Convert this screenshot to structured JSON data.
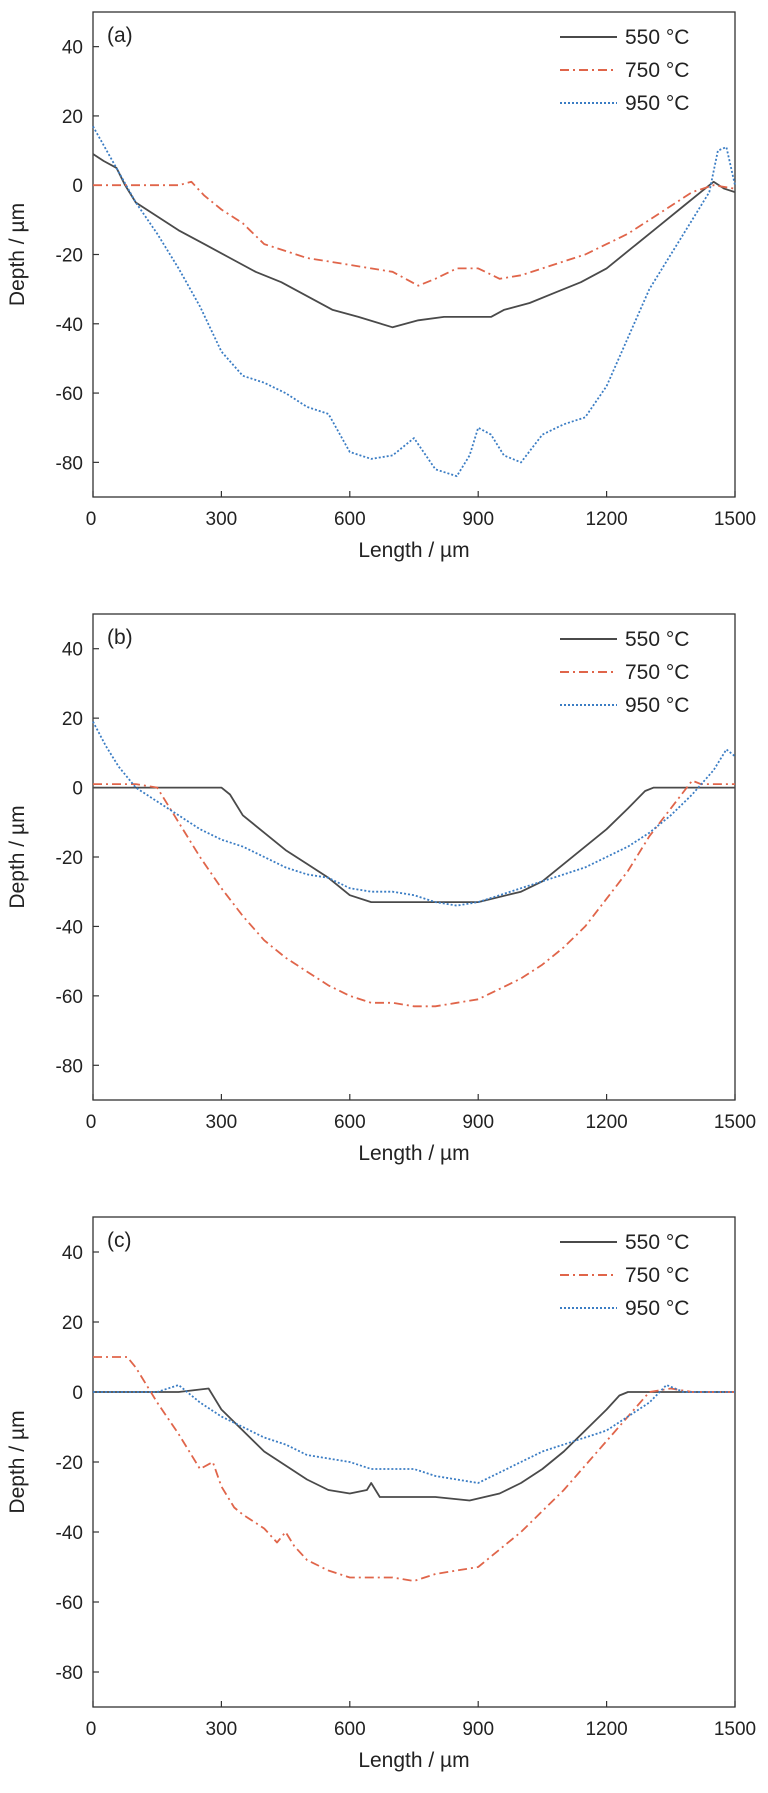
{
  "chart_data": [
    {
      "type": "line",
      "panel_label": "(a)",
      "xlabel": "Length / µm",
      "ylabel": "Depth / µm",
      "xlim": [
        0,
        1500
      ],
      "ylim": [
        -90,
        50
      ],
      "xticks": [
        "0",
        "300",
        "600",
        "900",
        "1200",
        "1500"
      ],
      "yticks": [
        "40",
        "20",
        "0",
        "-20",
        "-40",
        "-60",
        "-80"
      ],
      "legend_position": "top-right",
      "series": [
        {
          "name": "550 °C",
          "color": "#4a4a4a",
          "dash": "solid",
          "x": [
            0,
            25,
            55,
            75,
            100,
            150,
            200,
            260,
            320,
            380,
            440,
            500,
            560,
            620,
            700,
            760,
            820,
            880,
            930,
            960,
            1020,
            1080,
            1140,
            1200,
            1260,
            1320,
            1380,
            1420,
            1450,
            1475,
            1500
          ],
          "y": [
            9,
            7,
            5,
            0,
            -5,
            -9,
            -13,
            -17,
            -21,
            -25,
            -28,
            -32,
            -36,
            -38,
            -41,
            -39,
            -38,
            -38,
            -38,
            -36,
            -34,
            -31,
            -28,
            -24,
            -18,
            -12,
            -6,
            -2,
            1,
            -1,
            -2
          ]
        },
        {
          "name": "750 °C",
          "color": "#e0654a",
          "dash": "dashdot",
          "x": [
            0,
            100,
            200,
            230,
            260,
            300,
            350,
            400,
            450,
            500,
            550,
            600,
            650,
            700,
            760,
            800,
            850,
            900,
            950,
            1000,
            1050,
            1100,
            1150,
            1200,
            1250,
            1300,
            1350,
            1400,
            1450,
            1500
          ],
          "y": [
            0,
            0,
            0,
            1,
            -3,
            -7,
            -11,
            -17,
            -19,
            -21,
            -22,
            -23,
            -24,
            -25,
            -29,
            -27,
            -24,
            -24,
            -27,
            -26,
            -24,
            -22,
            -20,
            -17,
            -14,
            -10,
            -6,
            -2,
            0,
            -1
          ]
        },
        {
          "name": "950 °C",
          "color": "#3b7dc4",
          "dash": "dotted",
          "x": [
            0,
            50,
            100,
            150,
            200,
            250,
            300,
            350,
            400,
            450,
            500,
            550,
            600,
            650,
            700,
            750,
            800,
            850,
            880,
            900,
            930,
            960,
            1000,
            1050,
            1100,
            1150,
            1200,
            1250,
            1300,
            1350,
            1400,
            1440,
            1460,
            1480,
            1500
          ],
          "y": [
            17,
            6,
            -5,
            -14,
            -24,
            -35,
            -48,
            -55,
            -57,
            -60,
            -64,
            -66,
            -77,
            -79,
            -78,
            -73,
            -82,
            -84,
            -78,
            -70,
            -72,
            -78,
            -80,
            -72,
            -69,
            -67,
            -58,
            -44,
            -30,
            -20,
            -10,
            -2,
            10,
            11,
            0
          ]
        }
      ]
    },
    {
      "type": "line",
      "panel_label": "(b)",
      "xlabel": "Length / µm",
      "ylabel": "Depth / µm",
      "xlim": [
        0,
        1500
      ],
      "ylim": [
        -90,
        50
      ],
      "xticks": [
        "0",
        "300",
        "600",
        "900",
        "1200",
        "1500"
      ],
      "yticks": [
        "40",
        "20",
        "0",
        "-20",
        "-40",
        "-60",
        "-80"
      ],
      "legend_position": "top-right",
      "series": [
        {
          "name": "550 °C",
          "color": "#4a4a4a",
          "dash": "solid",
          "x": [
            0,
            100,
            200,
            300,
            320,
            350,
            400,
            450,
            500,
            550,
            600,
            650,
            700,
            800,
            900,
            1000,
            1050,
            1100,
            1150,
            1200,
            1250,
            1290,
            1310,
            1400,
            1500
          ],
          "y": [
            0,
            0,
            0,
            0,
            -2,
            -8,
            -13,
            -18,
            -22,
            -26,
            -31,
            -33,
            -33,
            -33,
            -33,
            -30,
            -27,
            -22,
            -17,
            -12,
            -6,
            -1,
            0,
            0,
            0
          ]
        },
        {
          "name": "750 °C",
          "color": "#e0654a",
          "dash": "dashdot",
          "x": [
            0,
            50,
            100,
            150,
            200,
            250,
            300,
            350,
            400,
            450,
            500,
            550,
            600,
            650,
            700,
            750,
            800,
            850,
            900,
            950,
            1000,
            1050,
            1100,
            1150,
            1200,
            1250,
            1300,
            1350,
            1400,
            1420,
            1500
          ],
          "y": [
            1,
            1,
            1,
            0,
            -10,
            -20,
            -29,
            -37,
            -44,
            -49,
            -53,
            -57,
            -60,
            -62,
            -62,
            -63,
            -63,
            -62,
            -61,
            -58,
            -55,
            -51,
            -46,
            -40,
            -32,
            -24,
            -14,
            -6,
            2,
            1,
            1
          ]
        },
        {
          "name": "950 °C",
          "color": "#3b7dc4",
          "dash": "dotted",
          "x": [
            0,
            30,
            60,
            100,
            150,
            200,
            250,
            300,
            350,
            400,
            450,
            500,
            550,
            600,
            650,
            700,
            750,
            800,
            850,
            900,
            950,
            1000,
            1050,
            1100,
            1150,
            1200,
            1250,
            1300,
            1350,
            1400,
            1450,
            1480,
            1500
          ],
          "y": [
            19,
            12,
            6,
            0,
            -4,
            -8,
            -12,
            -15,
            -17,
            -20,
            -23,
            -25,
            -26,
            -29,
            -30,
            -30,
            -31,
            -33,
            -34,
            -33,
            -31,
            -29,
            -27,
            -25,
            -23,
            -20,
            -17,
            -13,
            -8,
            -2,
            5,
            11,
            9
          ]
        }
      ]
    },
    {
      "type": "line",
      "panel_label": "(c)",
      "xlabel": "Length / µm",
      "ylabel": "Depth / µm",
      "xlim": [
        0,
        1500
      ],
      "ylim": [
        -90,
        50
      ],
      "xticks": [
        "0",
        "300",
        "600",
        "900",
        "1200",
        "1500"
      ],
      "yticks": [
        "40",
        "20",
        "0",
        "-20",
        "-40",
        "-60",
        "-80"
      ],
      "legend_position": "top-right",
      "series": [
        {
          "name": "550 °C",
          "color": "#4a4a4a",
          "dash": "solid",
          "x": [
            0,
            100,
            200,
            270,
            300,
            350,
            400,
            450,
            500,
            550,
            600,
            640,
            650,
            670,
            700,
            800,
            880,
            950,
            1000,
            1050,
            1100,
            1150,
            1200,
            1230,
            1250,
            1300,
            1400,
            1500
          ],
          "y": [
            0,
            0,
            0,
            1,
            -5,
            -11,
            -17,
            -21,
            -25,
            -28,
            -29,
            -28,
            -26,
            -30,
            -30,
            -30,
            -31,
            -29,
            -26,
            -22,
            -17,
            -11,
            -5,
            -1,
            0,
            0,
            0,
            0
          ]
        },
        {
          "name": "750 °C",
          "color": "#e0654a",
          "dash": "dashdot",
          "x": [
            0,
            50,
            80,
            100,
            150,
            200,
            250,
            280,
            300,
            330,
            350,
            400,
            430,
            450,
            470,
            500,
            550,
            600,
            700,
            750,
            800,
            900,
            950,
            1000,
            1050,
            1100,
            1150,
            1200,
            1250,
            1300,
            1350,
            1400,
            1500
          ],
          "y": [
            10,
            10,
            10,
            7,
            -3,
            -12,
            -22,
            -20,
            -27,
            -33,
            -35,
            -39,
            -43,
            -40,
            -44,
            -48,
            -51,
            -53,
            -53,
            -54,
            -52,
            -50,
            -45,
            -40,
            -34,
            -28,
            -21,
            -14,
            -7,
            0,
            1,
            0,
            0
          ]
        },
        {
          "name": "950 °C",
          "color": "#3b7dc4",
          "dash": "dotted",
          "x": [
            0,
            100,
            150,
            200,
            250,
            300,
            350,
            400,
            450,
            500,
            550,
            600,
            650,
            700,
            750,
            800,
            850,
            900,
            950,
            1000,
            1050,
            1100,
            1150,
            1200,
            1250,
            1300,
            1340,
            1380,
            1450,
            1500
          ],
          "y": [
            0,
            0,
            0,
            2,
            -3,
            -7,
            -10,
            -13,
            -15,
            -18,
            -19,
            -20,
            -22,
            -22,
            -22,
            -24,
            -25,
            -26,
            -23,
            -20,
            -17,
            -15,
            -13,
            -11,
            -7,
            -3,
            2,
            0,
            0,
            0
          ]
        }
      ]
    }
  ]
}
